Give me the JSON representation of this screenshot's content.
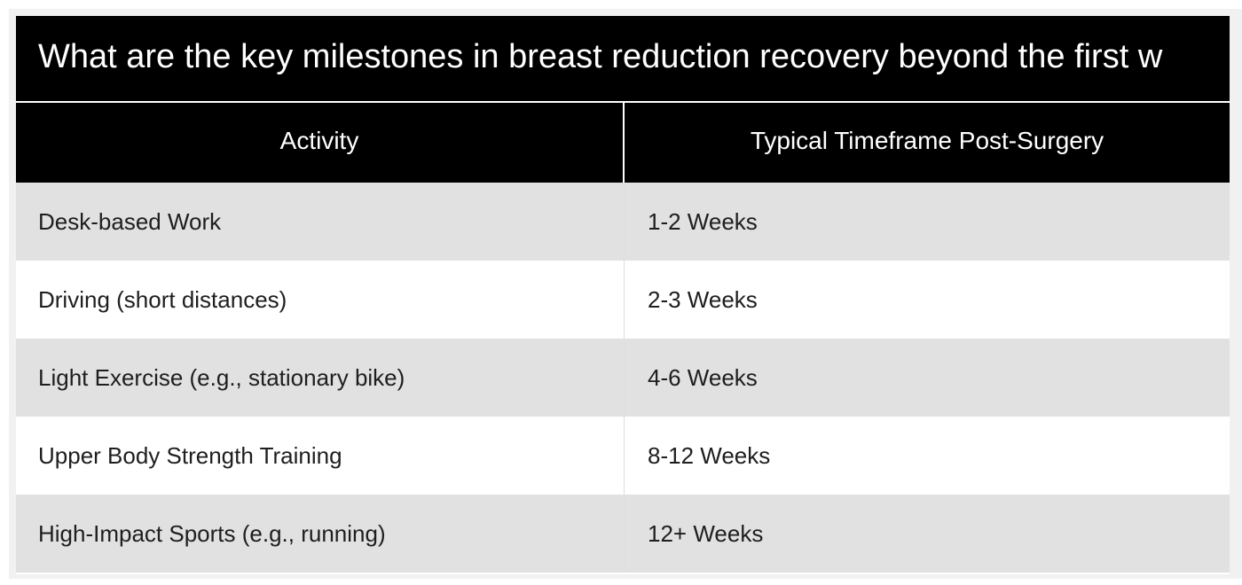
{
  "table": {
    "title": "What are the key milestones in breast reduction recovery beyond the first w",
    "headers": [
      "Activity",
      "Typical Timeframe Post-Surgery"
    ],
    "rows": [
      {
        "activity": "Desk-based Work",
        "timeframe": "1-2 Weeks"
      },
      {
        "activity": "Driving (short distances)",
        "timeframe": "2-3 Weeks"
      },
      {
        "activity": "Light Exercise (e.g., stationary bike)",
        "timeframe": "4-6 Weeks"
      },
      {
        "activity": "Upper Body Strength Training",
        "timeframe": "8-12 Weeks"
      },
      {
        "activity": "High-Impact Sports (e.g., running)",
        "timeframe": "12+ Weeks"
      }
    ]
  },
  "colors": {
    "header_background": "#000000",
    "header_text": "#ffffff",
    "shaded_row": "#e1e1e1",
    "plain_row": "#ffffff",
    "body_text": "#1e1e1e"
  }
}
